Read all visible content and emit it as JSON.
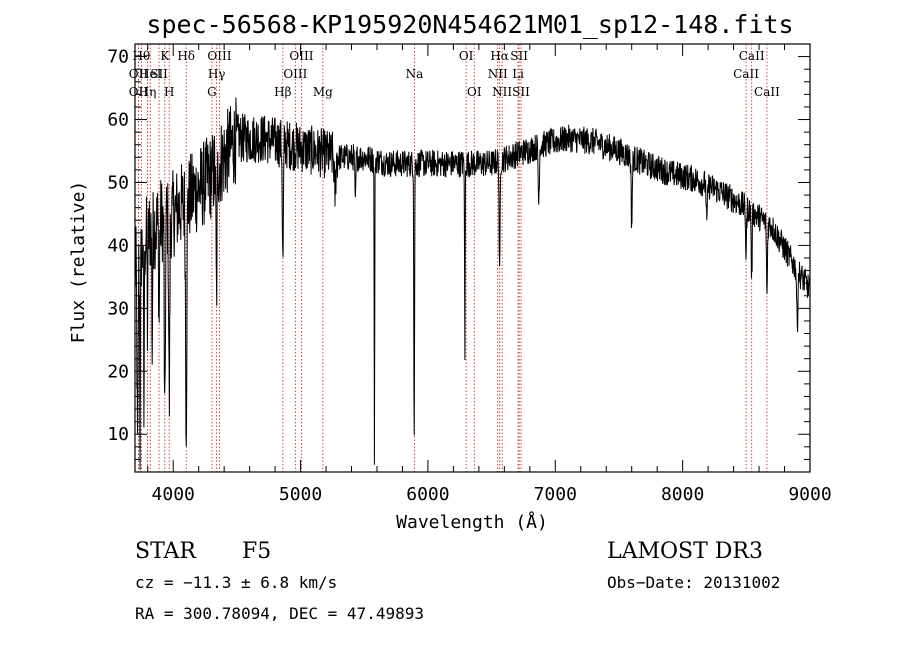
{
  "chart_data": {
    "type": "line",
    "title": "spec-56568-KP195920N454621M01_sp12-148.fits",
    "xlabel": "Wavelength (Å)",
    "ylabel": "Flux (relative)",
    "xlim": [
      3700,
      9000
    ],
    "ylim": [
      4,
      72
    ],
    "xticks": [
      4000,
      5000,
      6000,
      7000,
      8000,
      9000
    ],
    "yticks": [
      10,
      20,
      30,
      40,
      50,
      60,
      70
    ],
    "colors": {
      "spectrum": "#000000",
      "line_marker": "#cc3333",
      "axis": "#000000"
    },
    "spectral_lines": [
      {
        "wave": 3727,
        "label": "OII",
        "row": 1
      },
      {
        "wave": 3727,
        "label": "OII",
        "row": 2
      },
      {
        "wave": 3750,
        "label": "Hθ",
        "row": 0
      },
      {
        "wave": 3798,
        "label": "Hη",
        "row": 2
      },
      {
        "wave": 3820,
        "label": "HeI",
        "row": 1
      },
      {
        "wave": 3889,
        "label": "SII",
        "row": 1
      },
      {
        "wave": 3934,
        "label": "K",
        "row": 0
      },
      {
        "wave": 3969,
        "label": "H",
        "row": 2
      },
      {
        "wave": 4102,
        "label": "Hδ",
        "row": 0
      },
      {
        "wave": 4304,
        "label": "G",
        "row": 2
      },
      {
        "wave": 4341,
        "label": "Hγ",
        "row": 1
      },
      {
        "wave": 4363,
        "label": "OIII",
        "row": 0
      },
      {
        "wave": 4861,
        "label": "Hβ",
        "row": 2
      },
      {
        "wave": 4959,
        "label": "OIII",
        "row": 1
      },
      {
        "wave": 5007,
        "label": "OIII",
        "row": 0
      },
      {
        "wave": 5175,
        "label": "Mg",
        "row": 2
      },
      {
        "wave": 5894,
        "label": "Na",
        "row": 1
      },
      {
        "wave": 6300,
        "label": "OI",
        "row": 0
      },
      {
        "wave": 6364,
        "label": "OI",
        "row": 2
      },
      {
        "wave": 6548,
        "label": "NII",
        "row": 1
      },
      {
        "wave": 6563,
        "label": "Hα",
        "row": 0
      },
      {
        "wave": 6583,
        "label": "NII",
        "row": 2
      },
      {
        "wave": 6708,
        "label": "Li",
        "row": 1
      },
      {
        "wave": 6716,
        "label": "SII",
        "row": 0
      },
      {
        "wave": 6731,
        "label": "SII",
        "row": 2
      },
      {
        "wave": 8498,
        "label": "CaII",
        "row": 1
      },
      {
        "wave": 8542,
        "label": "CaII",
        "row": 0
      },
      {
        "wave": 8662,
        "label": "CaII",
        "row": 2
      }
    ],
    "continuum": [
      [
        3700,
        36
      ],
      [
        3800,
        42
      ],
      [
        3900,
        44
      ],
      [
        4000,
        45
      ],
      [
        4100,
        47
      ],
      [
        4300,
        51
      ],
      [
        4500,
        57
      ],
      [
        4700,
        57
      ],
      [
        4900,
        56
      ],
      [
        5100,
        55
      ],
      [
        5300,
        54
      ],
      [
        5500,
        54
      ],
      [
        5700,
        53
      ],
      [
        5900,
        53
      ],
      [
        6100,
        53
      ],
      [
        6300,
        53
      ],
      [
        6500,
        53
      ],
      [
        6700,
        54.5
      ],
      [
        6900,
        56
      ],
      [
        7100,
        57
      ],
      [
        7300,
        56.5
      ],
      [
        7500,
        55
      ],
      [
        7700,
        53
      ],
      [
        7900,
        51.5
      ],
      [
        8100,
        50.5
      ],
      [
        8300,
        48.5
      ],
      [
        8500,
        46
      ],
      [
        8700,
        43
      ],
      [
        8900,
        36
      ],
      [
        9000,
        33
      ]
    ],
    "absorption_features": [
      {
        "wave": 3720,
        "depth": 30,
        "width": 6
      },
      {
        "wave": 3740,
        "depth": 35,
        "width": 4
      },
      {
        "wave": 3770,
        "depth": 28,
        "width": 4
      },
      {
        "wave": 3798,
        "depth": 15,
        "width": 4
      },
      {
        "wave": 3835,
        "depth": 20,
        "width": 4
      },
      {
        "wave": 3889,
        "depth": 16,
        "width": 5
      },
      {
        "wave": 3934,
        "depth": 34,
        "width": 6
      },
      {
        "wave": 3969,
        "depth": 30,
        "width": 6
      },
      {
        "wave": 4102,
        "depth": 34,
        "width": 7
      },
      {
        "wave": 4340,
        "depth": 21,
        "width": 6
      },
      {
        "wave": 4861,
        "depth": 19,
        "width": 6
      },
      {
        "wave": 5270,
        "depth": 6,
        "width": 8
      },
      {
        "wave": 5430,
        "depth": 8,
        "width": 5
      },
      {
        "wave": 5580,
        "depth": 47,
        "width": 3
      },
      {
        "wave": 5892,
        "depth": 44,
        "width": 4
      },
      {
        "wave": 6290,
        "depth": 31,
        "width": 3
      },
      {
        "wave": 6563,
        "depth": 19,
        "width": 5
      },
      {
        "wave": 6870,
        "depth": 9,
        "width": 6
      },
      {
        "wave": 7600,
        "depth": 11,
        "width": 6
      },
      {
        "wave": 8190,
        "depth": 6,
        "width": 6
      },
      {
        "wave": 8498,
        "depth": 8,
        "width": 5
      },
      {
        "wave": 8542,
        "depth": 11,
        "width": 5
      },
      {
        "wave": 8662,
        "depth": 12,
        "width": 5
      },
      {
        "wave": 8900,
        "depth": 9,
        "width": 6
      }
    ]
  },
  "info": {
    "class": "STAR",
    "subclass": "F5",
    "redshift": "cz = −11.3 ± 6.8 km/s",
    "coords": "RA = 300.78094, DEC =  47.49893",
    "survey": "LAMOST DR3",
    "obs_date": "Obs−Date: 20131002"
  }
}
